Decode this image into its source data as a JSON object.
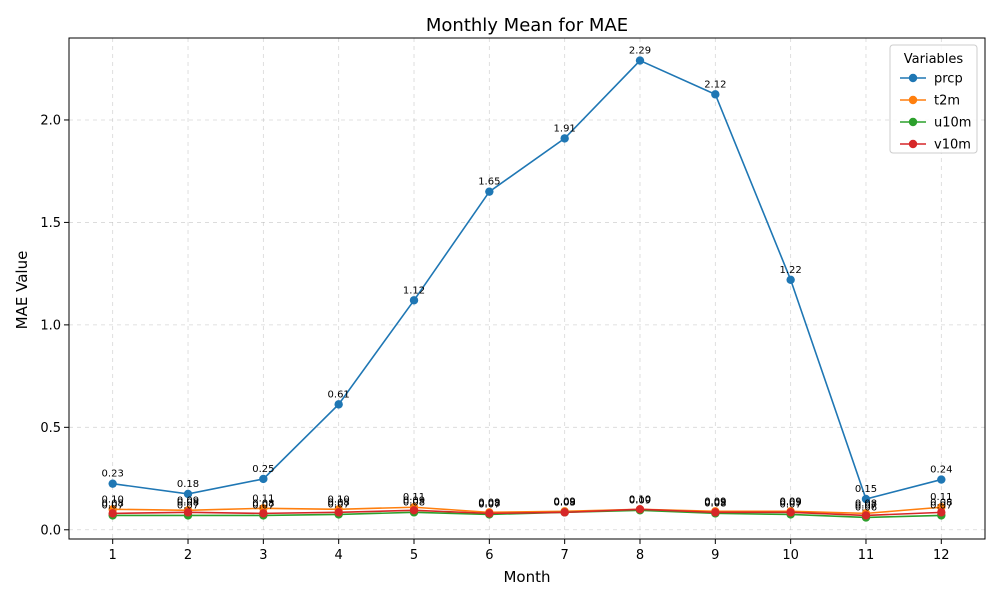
{
  "chart_data": {
    "type": "line",
    "title": "Monthly Mean for MAE",
    "xlabel": "Month",
    "ylabel": "MAE Value",
    "x": [
      1,
      2,
      3,
      4,
      5,
      6,
      7,
      8,
      9,
      10,
      11,
      12
    ],
    "xticks": [
      "1",
      "2",
      "3",
      "4",
      "5",
      "6",
      "7",
      "8",
      "9",
      "10",
      "11",
      "12"
    ],
    "xlim": [
      0.42,
      12.58
    ],
    "ylim": [
      -0.045,
      2.4
    ],
    "yticks": [
      0.0,
      0.5,
      1.0,
      1.5,
      2.0
    ],
    "ytick_labels": [
      "0.0",
      "0.5",
      "1.0",
      "1.5",
      "2.0"
    ],
    "grid": true,
    "legend": {
      "title": "Variables",
      "placement": "top-right"
    },
    "series": [
      {
        "name": "prcp",
        "color": "#1f77b4",
        "values": [
          0.225,
          0.175,
          0.248,
          0.612,
          1.12,
          1.65,
          1.91,
          2.29,
          2.125,
          1.22,
          0.15,
          0.245
        ],
        "labels": [
          "0.23",
          "0.18",
          "0.25",
          "0.61",
          "1.12",
          "1.65",
          "1.91",
          "2.29",
          "2.12",
          "1.22",
          "0.15",
          "0.24"
        ]
      },
      {
        "name": "t2m",
        "color": "#ff7f0e",
        "values": [
          0.1,
          0.095,
          0.105,
          0.1,
          0.11,
          0.085,
          0.09,
          0.1,
          0.09,
          0.09,
          0.08,
          0.11
        ],
        "labels": [
          "0.10",
          "0.09",
          "0.11",
          "0.10",
          "0.11",
          "0.09",
          "0.09",
          "0.10",
          "0.09",
          "0.09",
          "0.08",
          "0.11"
        ]
      },
      {
        "name": "u10m",
        "color": "#2ca02c",
        "values": [
          0.07,
          0.07,
          0.07,
          0.075,
          0.085,
          0.075,
          0.085,
          0.095,
          0.08,
          0.075,
          0.06,
          0.07
        ],
        "labels": [
          "0.07",
          "0.07",
          "0.07",
          "0.07",
          "0.08",
          "0.07",
          "0.08",
          "0.09",
          "0.08",
          "0.07",
          "0.06",
          "0.07"
        ]
      },
      {
        "name": "v10m",
        "color": "#d62728",
        "values": [
          0.08,
          0.085,
          0.08,
          0.085,
          0.095,
          0.08,
          0.085,
          0.1,
          0.085,
          0.085,
          0.07,
          0.085
        ],
        "labels": [
          "0.08",
          "0.08",
          "0.08",
          "0.08",
          "0.09",
          "0.08",
          "0.09",
          "0.10",
          "0.09",
          "0.09",
          "0.07",
          "0.08"
        ]
      }
    ]
  }
}
